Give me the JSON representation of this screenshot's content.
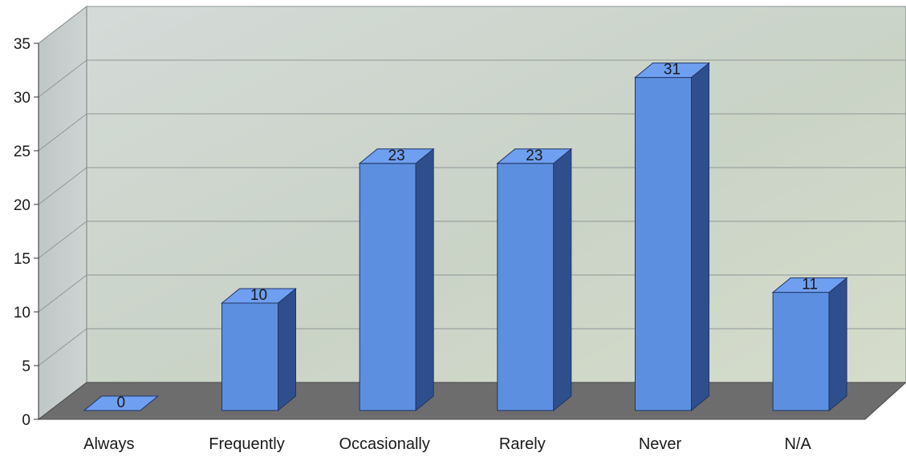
{
  "chart_data": {
    "type": "bar",
    "categories": [
      "Always",
      "Frequently",
      "Occasionally",
      "Rarely",
      "Never",
      "N/A"
    ],
    "values": [
      0,
      10,
      23,
      23,
      31,
      11
    ],
    "data_labels": [
      "0",
      "10",
      "23",
      "23",
      "31",
      "11"
    ],
    "title": "",
    "xlabel": "",
    "ylabel": "",
    "ylim": [
      0,
      35
    ],
    "yticks": [
      "0",
      "5",
      "10",
      "15",
      "20",
      "25",
      "30",
      "35"
    ],
    "grid": true,
    "legend": "none",
    "style": "3d-column",
    "colors": {
      "bar_front": "#5d8fe0",
      "bar_top": "#6f9ff0",
      "bar_side": "#2f4f8c",
      "back_wall": "#c8d0cf",
      "side_wall": "#c3cbcb",
      "floor": "#6d6d6d",
      "gridline": "#8f9696"
    }
  }
}
